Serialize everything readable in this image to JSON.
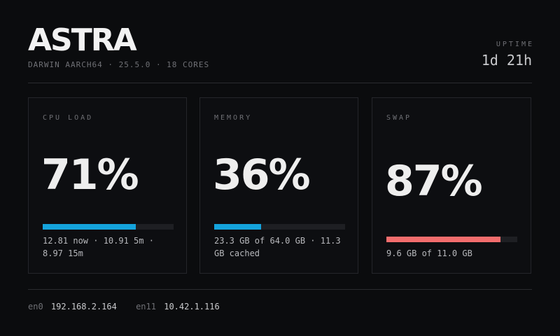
{
  "header": {
    "brand": "ASTRA",
    "system_info": "DARWIN AARCH64 · 25.5.0 · 18 CORES",
    "uptime_label": "UPTIME",
    "uptime_value": "1d 21h"
  },
  "cards": [
    {
      "label": "CPU LOAD",
      "value": "71%",
      "fill_percent": 71,
      "fill_color": "#14a3dc",
      "detail": "12.81 now · 10.91 5m · 8.97 15m"
    },
    {
      "label": "MEMORY",
      "value": "36%",
      "fill_percent": 36,
      "fill_color": "#14a3dc",
      "detail": "23.3 GB of 64.0 GB · 11.3 GB cached"
    },
    {
      "label": "SWAP",
      "value": "87%",
      "fill_percent": 87,
      "fill_color": "#f26d6d",
      "detail": "9.6 GB of 11.0 GB"
    }
  ],
  "network": [
    {
      "interface": "en0",
      "address": "192.168.2.164"
    },
    {
      "interface": "en11",
      "address": "10.42.1.116"
    }
  ]
}
